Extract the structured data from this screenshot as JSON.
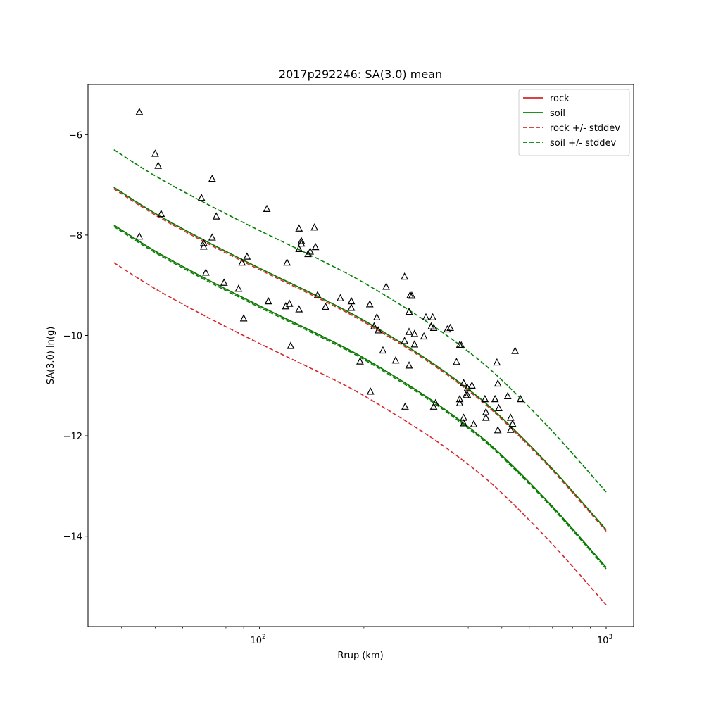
{
  "chart_data": {
    "type": "scatter",
    "title": "2017p292246: SA(3.0) mean",
    "xlabel": "Rrup (km)",
    "ylabel": "SA(3.0) ln(g)",
    "x_scale": "log",
    "xlim": [
      32,
      1200
    ],
    "ylim": [
      -15.8,
      -5.0
    ],
    "x_ticks": [
      {
        "value": 100,
        "base": "10",
        "exp": "2"
      },
      {
        "value": 1000,
        "base": "10",
        "exp": "3"
      }
    ],
    "y_ticks": [
      {
        "value": -6,
        "label": "−6"
      },
      {
        "value": -8,
        "label": "−8"
      },
      {
        "value": -10,
        "label": "−10"
      },
      {
        "value": -12,
        "label": "−12"
      },
      {
        "value": -14,
        "label": "−14"
      }
    ],
    "grid": false,
    "legend_position": "top-right",
    "colors": {
      "rock": "#d62728",
      "soil": "#008000",
      "points": "#000000"
    },
    "series": [
      {
        "name": "rock",
        "style": "solid",
        "color": "#d62728",
        "x": [
          38,
          50,
          70,
          100,
          150,
          200,
          300,
          400,
          500,
          700,
          1000
        ],
        "y": [
          -7.05,
          -7.57,
          -8.12,
          -8.66,
          -9.25,
          -9.7,
          -10.45,
          -11.07,
          -11.64,
          -12.66,
          -13.87
        ]
      },
      {
        "name": "soil",
        "style": "solid",
        "color": "#008000",
        "x": [
          38,
          50,
          70,
          100,
          150,
          200,
          300,
          400,
          500,
          700,
          1000
        ],
        "y": [
          -7.05,
          -7.57,
          -8.12,
          -8.66,
          -9.25,
          -9.7,
          -10.45,
          -11.07,
          -11.64,
          -12.66,
          -13.87
        ]
      },
      {
        "name": "rock",
        "style": "solid",
        "color": "#d62728",
        "legend": false,
        "x": [
          38,
          50,
          70,
          100,
          150,
          200,
          300,
          400,
          500,
          700,
          1000
        ],
        "y": [
          -7.8,
          -8.32,
          -8.87,
          -9.41,
          -10.0,
          -10.45,
          -11.2,
          -11.82,
          -12.39,
          -13.41,
          -14.62
        ]
      },
      {
        "name": "soil",
        "style": "solid",
        "color": "#008000",
        "legend": false,
        "x": [
          38,
          50,
          70,
          100,
          150,
          200,
          300,
          400,
          500,
          700,
          1000
        ],
        "y": [
          -7.8,
          -8.32,
          -8.87,
          -9.41,
          -10.0,
          -10.45,
          -11.2,
          -11.82,
          -12.39,
          -13.41,
          -14.62
        ]
      },
      {
        "name": "rock +/- stddev",
        "style": "dashed",
        "color": "#d62728",
        "x": [
          38,
          50,
          70,
          100,
          150,
          200,
          300,
          400,
          500,
          700,
          1000
        ],
        "y": [
          -7.08,
          -7.6,
          -8.15,
          -8.69,
          -9.28,
          -9.73,
          -10.48,
          -11.1,
          -11.67,
          -12.69,
          -13.9
        ]
      },
      {
        "name": "soil +/- stddev",
        "style": "dashed",
        "color": "#008000",
        "x": [
          38,
          50,
          70,
          100,
          150,
          200,
          300,
          400,
          500,
          700,
          1000
        ],
        "y": [
          -6.3,
          -6.82,
          -7.37,
          -7.91,
          -8.5,
          -8.95,
          -9.7,
          -10.32,
          -10.89,
          -11.91,
          -13.12
        ]
      },
      {
        "name": "rock +/- stddev",
        "style": "dashed",
        "color": "#d62728",
        "legend": false,
        "x": [
          38,
          50,
          70,
          100,
          150,
          200,
          300,
          400,
          500,
          700,
          1000
        ],
        "y": [
          -8.55,
          -9.07,
          -9.62,
          -10.16,
          -10.75,
          -11.2,
          -11.95,
          -12.57,
          -13.14,
          -14.16,
          -15.37
        ]
      },
      {
        "name": "soil +/- stddev",
        "style": "dashed",
        "color": "#008000",
        "legend": false,
        "x": [
          38,
          50,
          70,
          100,
          150,
          200,
          300,
          400,
          500,
          700,
          1000
        ],
        "y": [
          -7.83,
          -8.35,
          -8.9,
          -9.44,
          -10.03,
          -10.48,
          -11.23,
          -11.85,
          -12.42,
          -13.44,
          -14.65
        ]
      }
    ],
    "points": [
      [
        45,
        -5.55
      ],
      [
        50,
        -6.38
      ],
      [
        51,
        -6.62
      ],
      [
        52,
        -7.58
      ],
      [
        45,
        -8.03
      ],
      [
        68,
        -7.26
      ],
      [
        69,
        -8.16
      ],
      [
        69,
        -8.23
      ],
      [
        70,
        -8.75
      ],
      [
        73,
        -6.88
      ],
      [
        73,
        -8.05
      ],
      [
        75,
        -7.63
      ],
      [
        79,
        -8.95
      ],
      [
        87,
        -9.07
      ],
      [
        89,
        -8.55
      ],
      [
        90,
        -9.66
      ],
      [
        92,
        -8.43
      ],
      [
        105,
        -7.48
      ],
      [
        106,
        -9.32
      ],
      [
        119,
        -9.42
      ],
      [
        120,
        -8.55
      ],
      [
        122,
        -9.37
      ],
      [
        123,
        -10.21
      ],
      [
        130,
        -9.48
      ],
      [
        130,
        -7.87
      ],
      [
        130,
        -8.28
      ],
      [
        132,
        -8.12
      ],
      [
        132,
        -8.17
      ],
      [
        138,
        -8.38
      ],
      [
        140,
        -8.33
      ],
      [
        144,
        -7.85
      ],
      [
        145,
        -8.24
      ],
      [
        147,
        -9.2
      ],
      [
        155,
        -9.43
      ],
      [
        171,
        -9.26
      ],
      [
        184,
        -9.32
      ],
      [
        184,
        -9.45
      ],
      [
        195,
        -10.52
      ],
      [
        208,
        -9.38
      ],
      [
        209,
        -11.12
      ],
      [
        214,
        -9.82
      ],
      [
        218,
        -9.64
      ],
      [
        220,
        -9.9
      ],
      [
        227,
        -10.3
      ],
      [
        232,
        -9.03
      ],
      [
        247,
        -10.5
      ],
      [
        262,
        -8.83
      ],
      [
        262,
        -10.11
      ],
      [
        263,
        -11.42
      ],
      [
        270,
        -9.53
      ],
      [
        270,
        -9.93
      ],
      [
        270,
        -10.6
      ],
      [
        272,
        -9.2
      ],
      [
        275,
        -9.21
      ],
      [
        280,
        -9.97
      ],
      [
        280,
        -10.18
      ],
      [
        298,
        -10.02
      ],
      [
        302,
        -9.64
      ],
      [
        313,
        -9.82
      ],
      [
        316,
        -9.64
      ],
      [
        318,
        -9.85
      ],
      [
        318,
        -11.42
      ],
      [
        322,
        -11.35
      ],
      [
        348,
        -9.88
      ],
      [
        355,
        -9.85
      ],
      [
        370,
        -10.53
      ],
      [
        378,
        -10.19
      ],
      [
        378,
        -11.35
      ],
      [
        378,
        -11.27
      ],
      [
        382,
        -10.2
      ],
      [
        388,
        -10.95
      ],
      [
        388,
        -11.64
      ],
      [
        388,
        -11.75
      ],
      [
        394,
        -11.19
      ],
      [
        398,
        -11.05
      ],
      [
        398,
        -11.19
      ],
      [
        410,
        -11.0
      ],
      [
        415,
        -11.77
      ],
      [
        447,
        -11.27
      ],
      [
        450,
        -11.53
      ],
      [
        450,
        -11.64
      ],
      [
        478,
        -11.27
      ],
      [
        484,
        -10.54
      ],
      [
        487,
        -10.96
      ],
      [
        490,
        -11.45
      ],
      [
        487,
        -11.89
      ],
      [
        520,
        -11.21
      ],
      [
        530,
        -11.64
      ],
      [
        530,
        -11.88
      ],
      [
        537,
        -11.76
      ],
      [
        546,
        -10.31
      ],
      [
        566,
        -11.27
      ]
    ]
  }
}
